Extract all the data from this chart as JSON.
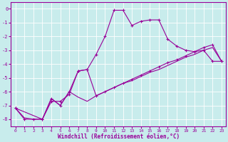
{
  "xlabel": "Windchill (Refroidissement éolien,°C)",
  "background_color": "#c8ecec",
  "line_color": "#990099",
  "grid_color": "#ffffff",
  "xlim": [
    -0.5,
    23.5
  ],
  "ylim": [
    -8.5,
    0.5
  ],
  "xticks": [
    0,
    1,
    2,
    3,
    4,
    5,
    6,
    7,
    8,
    9,
    10,
    11,
    12,
    13,
    14,
    15,
    16,
    17,
    18,
    19,
    20,
    21,
    22,
    23
  ],
  "yticks": [
    0,
    -1,
    -2,
    -3,
    -4,
    -5,
    -6,
    -7,
    -8
  ],
  "line1_x": [
    0,
    1,
    2,
    3,
    4,
    5,
    6,
    7,
    8,
    9,
    10,
    11,
    12,
    13,
    14,
    15,
    16,
    17,
    18,
    19,
    20,
    21,
    22,
    23
  ],
  "line1_y": [
    -7.2,
    -8.0,
    -8.0,
    -8.0,
    -6.7,
    -6.7,
    -6.2,
    -4.5,
    -4.4,
    -3.3,
    -2.0,
    -0.1,
    -0.1,
    -1.2,
    -0.9,
    -0.8,
    -0.8,
    -2.2,
    -2.7,
    -3.0,
    -3.1,
    -3.0,
    -3.8,
    -3.8
  ],
  "line2_x": [
    0,
    1,
    2,
    3,
    4,
    5,
    6,
    7,
    8,
    9,
    10,
    11,
    12,
    13,
    14,
    15,
    16,
    17,
    18,
    19,
    20,
    21,
    22,
    23
  ],
  "line2_y": [
    -7.2,
    -7.9,
    -8.0,
    -8.0,
    -6.5,
    -7.0,
    -6.0,
    -6.4,
    -6.7,
    -6.3,
    -6.0,
    -5.7,
    -5.4,
    -5.2,
    -4.9,
    -4.6,
    -4.4,
    -4.1,
    -3.8,
    -3.5,
    -3.3,
    -3.0,
    -2.8,
    -3.8
  ],
  "line3_x": [
    0,
    3,
    4,
    5,
    6,
    7,
    8,
    9,
    10,
    11,
    12,
    13,
    14,
    15,
    16,
    17,
    18,
    19,
    20,
    21,
    22,
    23
  ],
  "line3_y": [
    -7.2,
    -8.0,
    -6.5,
    -7.0,
    -6.0,
    -4.5,
    -4.4,
    -6.3,
    -6.0,
    -5.7,
    -5.4,
    -5.1,
    -4.8,
    -4.5,
    -4.2,
    -3.9,
    -3.7,
    -3.4,
    -3.1,
    -2.8,
    -2.6,
    -3.8
  ]
}
